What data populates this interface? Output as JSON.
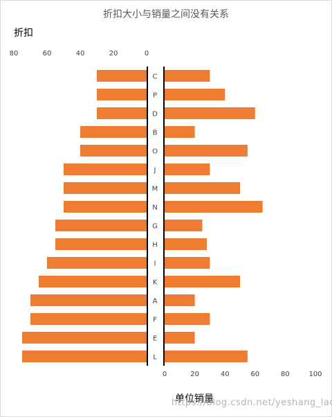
{
  "chart_data": {
    "type": "bar",
    "title": "折扣大小与销量之间没有关系",
    "left_axis_label": "折扣",
    "right_axis_label": "单位销量",
    "categories": [
      "C",
      "P",
      "D",
      "B",
      "O",
      "J",
      "M",
      "N",
      "G",
      "H",
      "I",
      "K",
      "A",
      "F",
      "E",
      "L"
    ],
    "series": [
      {
        "name": "折扣",
        "values": [
          30,
          30,
          30,
          40,
          40,
          50,
          50,
          50,
          55,
          55,
          60,
          65,
          70,
          70,
          75,
          75
        ]
      },
      {
        "name": "单位销量",
        "values": [
          30,
          40,
          60,
          20,
          55,
          30,
          50,
          65,
          25,
          28,
          30,
          50,
          20,
          30,
          20,
          55
        ]
      }
    ],
    "left_xlim": [
      0,
      80
    ],
    "left_ticks": [
      "80",
      "60",
      "40",
      "20",
      "0"
    ],
    "right_xlim": [
      0,
      100
    ],
    "right_ticks": [
      "0",
      "20",
      "40",
      "60",
      "80",
      "100"
    ],
    "bar_color": "#ED7D31",
    "grid": false,
    "legend": "none"
  },
  "watermark": "https://blog.csdn.net/yeshang_lady"
}
